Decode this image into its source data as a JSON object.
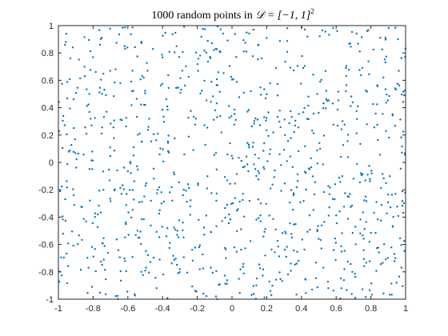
{
  "chart_data": {
    "type": "scatter",
    "title_prefix": "1000 random points in ",
    "title_math": "𝒟 = [−1, 1]",
    "title_sup": "2",
    "xlabel": "",
    "ylabel": "",
    "xlim": [
      -1,
      1
    ],
    "ylim": [
      -1,
      1
    ],
    "xticks": [
      -1,
      -0.8,
      -0.6,
      -0.4,
      -0.2,
      0,
      0.2,
      0.4,
      0.6,
      0.8,
      1
    ],
    "yticks": [
      -1,
      -0.8,
      -0.6,
      -0.4,
      -0.2,
      0,
      0.2,
      0.4,
      0.6,
      0.8,
      1
    ],
    "xtick_labels": [
      "-1",
      "-0.8",
      "-0.6",
      "-0.4",
      "-0.2",
      "0",
      "0.2",
      "0.4",
      "0.6",
      "0.8",
      "1"
    ],
    "ytick_labels": [
      "-1",
      "-0.8",
      "-0.6",
      "-0.4",
      "-0.2",
      "0",
      "0.2",
      "0.4",
      "0.6",
      "0.8",
      "1"
    ],
    "grid": false,
    "marker": "point",
    "series": [
      {
        "color": "#0072BD",
        "n_points": 1000,
        "distribution": "uniform"
      }
    ]
  }
}
